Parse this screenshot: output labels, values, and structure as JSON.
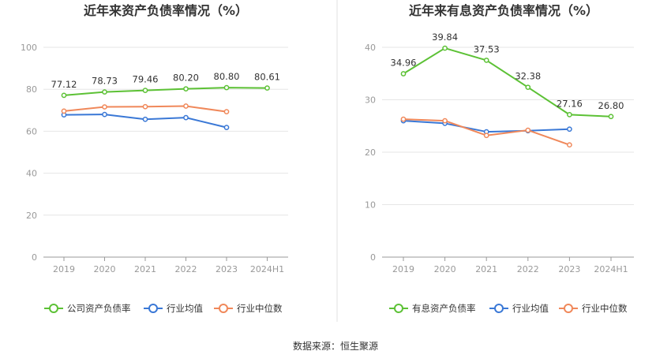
{
  "colors": {
    "company": "#5cc135",
    "industry_avg": "#3a78d6",
    "industry_median": "#f0885a",
    "grid": "#e6e6e6",
    "axis": "#999999",
    "divider": "#e0e0e0"
  },
  "source": "数据来源：恒生聚源",
  "chart_data": [
    {
      "type": "line",
      "title": "近年来资产负债率情况（%）",
      "categories": [
        "2019",
        "2020",
        "2021",
        "2022",
        "2023",
        "2024H1"
      ],
      "ylim": [
        0,
        100
      ],
      "yticks": [
        0,
        20,
        40,
        60,
        80,
        100
      ],
      "xlabel": "",
      "ylabel": "",
      "grid": true,
      "legend_position": "bottom",
      "series": [
        {
          "name": "公司资产负债率",
          "color_key": "company",
          "labeled": true,
          "values": [
            77.12,
            78.73,
            79.46,
            80.2,
            80.8,
            80.61
          ],
          "labels": [
            "77.12",
            "78.73",
            "79.46",
            "80.20",
            "80.80",
            "80.61"
          ]
        },
        {
          "name": "行业均值",
          "color_key": "industry_avg",
          "labeled": false,
          "values": [
            67.8,
            68.0,
            65.7,
            66.5,
            61.8,
            null
          ]
        },
        {
          "name": "行业中位数",
          "color_key": "industry_median",
          "labeled": false,
          "values": [
            69.6,
            71.6,
            71.7,
            72.0,
            69.3,
            null
          ]
        }
      ]
    },
    {
      "type": "line",
      "title": "近年来有息资产负债率情况（%）",
      "categories": [
        "2019",
        "2020",
        "2021",
        "2022",
        "2023",
        "2024H1"
      ],
      "ylim": [
        0,
        40
      ],
      "yticks": [
        0,
        10,
        20,
        30,
        40
      ],
      "xlabel": "",
      "ylabel": "",
      "grid": true,
      "legend_position": "bottom",
      "series": [
        {
          "name": "有息资产负债率",
          "color_key": "company",
          "labeled": true,
          "values": [
            34.96,
            39.84,
            37.53,
            32.38,
            27.16,
            26.8
          ],
          "labels": [
            "34.96",
            "39.84",
            "37.53",
            "32.38",
            "27.16",
            "26.80"
          ]
        },
        {
          "name": "行业均值",
          "color_key": "industry_avg",
          "labeled": false,
          "values": [
            26.0,
            25.5,
            23.9,
            24.1,
            24.4,
            null
          ]
        },
        {
          "name": "行业中位数",
          "color_key": "industry_median",
          "labeled": false,
          "values": [
            26.3,
            26.0,
            23.2,
            24.2,
            21.4,
            null
          ]
        }
      ]
    }
  ]
}
